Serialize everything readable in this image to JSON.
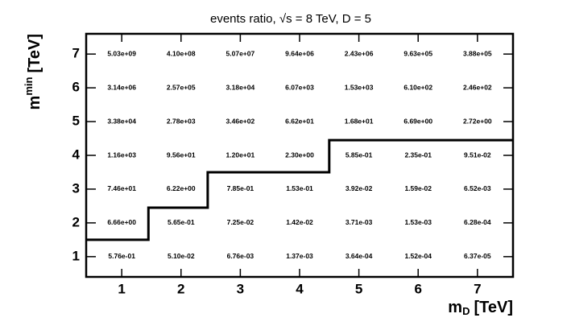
{
  "chart_data": {
    "type": "text2d",
    "title": "events ratio, √s = 8 TeV, D = 5",
    "xlabel": {
      "base": "m",
      "sub": "D",
      "unit": "[TeV]"
    },
    "ylabel": {
      "base": "m",
      "sup": "min",
      "unit": "[TeV]"
    },
    "xlim": [
      0.4,
      7.6
    ],
    "ylim": [
      0.4,
      7.6
    ],
    "xticks": [
      1,
      2,
      3,
      4,
      5,
      6,
      7
    ],
    "yticks": [
      1,
      2,
      3,
      4,
      5,
      6,
      7
    ],
    "x": [
      1,
      2,
      3,
      4,
      5,
      6,
      7
    ],
    "y": [
      1,
      2,
      3,
      4,
      5,
      6,
      7
    ],
    "values": [
      [
        0.576,
        0.051,
        0.00676,
        0.00137,
        0.000364,
        0.000152,
        6.37e-05
      ],
      [
        6.66,
        0.565,
        0.0725,
        0.0142,
        0.00371,
        0.00153,
        0.000628
      ],
      [
        74.6,
        6.22,
        0.785,
        0.153,
        0.0392,
        0.0159,
        0.00652
      ],
      [
        1160,
        95.6,
        12.0,
        2.3,
        0.585,
        0.235,
        0.0951
      ],
      [
        33800,
        2780,
        346,
        66.2,
        16.8,
        6.69,
        2.72
      ],
      [
        3140000,
        257000,
        31800,
        6070,
        1530,
        610,
        246
      ],
      [
        5030000000,
        410000000,
        50700000,
        9640000,
        2430000,
        963000,
        388000
      ]
    ],
    "value_labels": [
      [
        "5.76e-01",
        "5.10e-02",
        "6.76e-03",
        "1.37e-03",
        "3.64e-04",
        "1.52e-04",
        "6.37e-05"
      ],
      [
        "6.66e+00",
        "5.65e-01",
        "7.25e-02",
        "1.42e-02",
        "3.71e-03",
        "1.53e-03",
        "6.28e-04"
      ],
      [
        "7.46e+01",
        "6.22e+00",
        "7.85e-01",
        "1.53e-01",
        "3.92e-02",
        "1.59e-02",
        "6.52e-03"
      ],
      [
        "1.16e+03",
        "9.56e+01",
        "1.20e+01",
        "2.30e+00",
        "5.85e-01",
        "2.35e-01",
        "9.51e-02"
      ],
      [
        "3.38e+04",
        "2.78e+03",
        "3.46e+02",
        "6.62e+01",
        "1.68e+01",
        "6.69e+00",
        "2.72e+00"
      ],
      [
        "3.14e+06",
        "2.57e+05",
        "3.18e+04",
        "6.07e+03",
        "1.53e+03",
        "6.10e+02",
        "2.46e+02"
      ],
      [
        "5.03e+09",
        "4.10e+08",
        "5.07e+07",
        "9.64e+06",
        "2.43e+06",
        "9.63e+05",
        "3.88e+05"
      ]
    ],
    "boundary": {
      "color": "#000000",
      "x": [
        0.4,
        1.45,
        1.45,
        2.45,
        2.45,
        4.5,
        4.5,
        7.6
      ],
      "y": [
        1.5,
        1.5,
        2.45,
        2.45,
        3.5,
        3.5,
        4.45,
        4.45
      ]
    }
  }
}
